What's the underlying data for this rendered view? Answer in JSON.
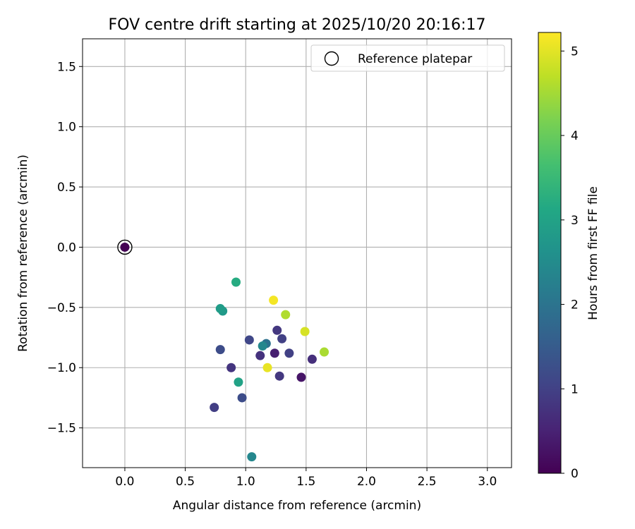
{
  "chart_data": {
    "type": "scatter",
    "title": "FOV centre drift starting at 2025/10/20 20:16:17",
    "xlabel": "Angular distance from reference (arcmin)",
    "ylabel": "Rotation from reference (arcmin)",
    "xlim": [
      -0.35,
      3.2
    ],
    "ylim": [
      -1.83,
      1.73
    ],
    "xticks": [
      0.0,
      0.5,
      1.0,
      1.5,
      2.0,
      2.5,
      3.0
    ],
    "xtick_labels": [
      "0.0",
      "0.5",
      "1.0",
      "1.5",
      "2.0",
      "2.5",
      "3.0"
    ],
    "yticks": [
      1.5,
      1.0,
      0.5,
      0.0,
      -0.5,
      -1.0,
      -1.5
    ],
    "ytick_labels": [
      "1.5",
      "1.0",
      "0.5",
      "0.0",
      "−0.5",
      "−1.0",
      "−1.5"
    ],
    "grid": true,
    "legend": {
      "position": "top-right",
      "label": "Reference platepar"
    },
    "reference_point": {
      "x": 0.0,
      "y": 0.0
    },
    "colorbar": {
      "label": "Hours from first FF file",
      "min": 0,
      "max": 5.22,
      "ticks": [
        0,
        1,
        2,
        3,
        4,
        5
      ],
      "tick_labels": [
        "0",
        "1",
        "2",
        "3",
        "4",
        "5"
      ],
      "colormap": "viridis"
    },
    "points": [
      {
        "x": 0.0,
        "y": 0.0,
        "hours": 0.0
      },
      {
        "x": 1.46,
        "y": -1.08,
        "hours": 0.3
      },
      {
        "x": 1.24,
        "y": -0.88,
        "hours": 0.45
      },
      {
        "x": 1.55,
        "y": -0.93,
        "hours": 0.7
      },
      {
        "x": 1.12,
        "y": -0.9,
        "hours": 0.75
      },
      {
        "x": 0.88,
        "y": -1.0,
        "hours": 0.8
      },
      {
        "x": 1.26,
        "y": -0.69,
        "hours": 0.85
      },
      {
        "x": 1.28,
        "y": -1.07,
        "hours": 0.85
      },
      {
        "x": 0.74,
        "y": -1.33,
        "hours": 0.95
      },
      {
        "x": 1.3,
        "y": -0.76,
        "hours": 1.0
      },
      {
        "x": 1.36,
        "y": -0.88,
        "hours": 1.0
      },
      {
        "x": 1.03,
        "y": -0.77,
        "hours": 1.1
      },
      {
        "x": 0.79,
        "y": -0.85,
        "hours": 1.2
      },
      {
        "x": 0.97,
        "y": -1.25,
        "hours": 1.2
      },
      {
        "x": 1.17,
        "y": -0.8,
        "hours": 1.95
      },
      {
        "x": 1.14,
        "y": -0.82,
        "hours": 2.4
      },
      {
        "x": 1.05,
        "y": -1.74,
        "hours": 2.4
      },
      {
        "x": 0.81,
        "y": -0.53,
        "hours": 2.8
      },
      {
        "x": 0.79,
        "y": -0.51,
        "hours": 2.85
      },
      {
        "x": 0.94,
        "y": -1.12,
        "hours": 3.0
      },
      {
        "x": 0.92,
        "y": -0.29,
        "hours": 3.2
      },
      {
        "x": 1.65,
        "y": -0.87,
        "hours": 4.55
      },
      {
        "x": 1.33,
        "y": -0.56,
        "hours": 4.6
      },
      {
        "x": 1.49,
        "y": -0.7,
        "hours": 4.9
      },
      {
        "x": 1.18,
        "y": -1.0,
        "hours": 5.05
      },
      {
        "x": 1.23,
        "y": -0.44,
        "hours": 5.15
      }
    ]
  }
}
